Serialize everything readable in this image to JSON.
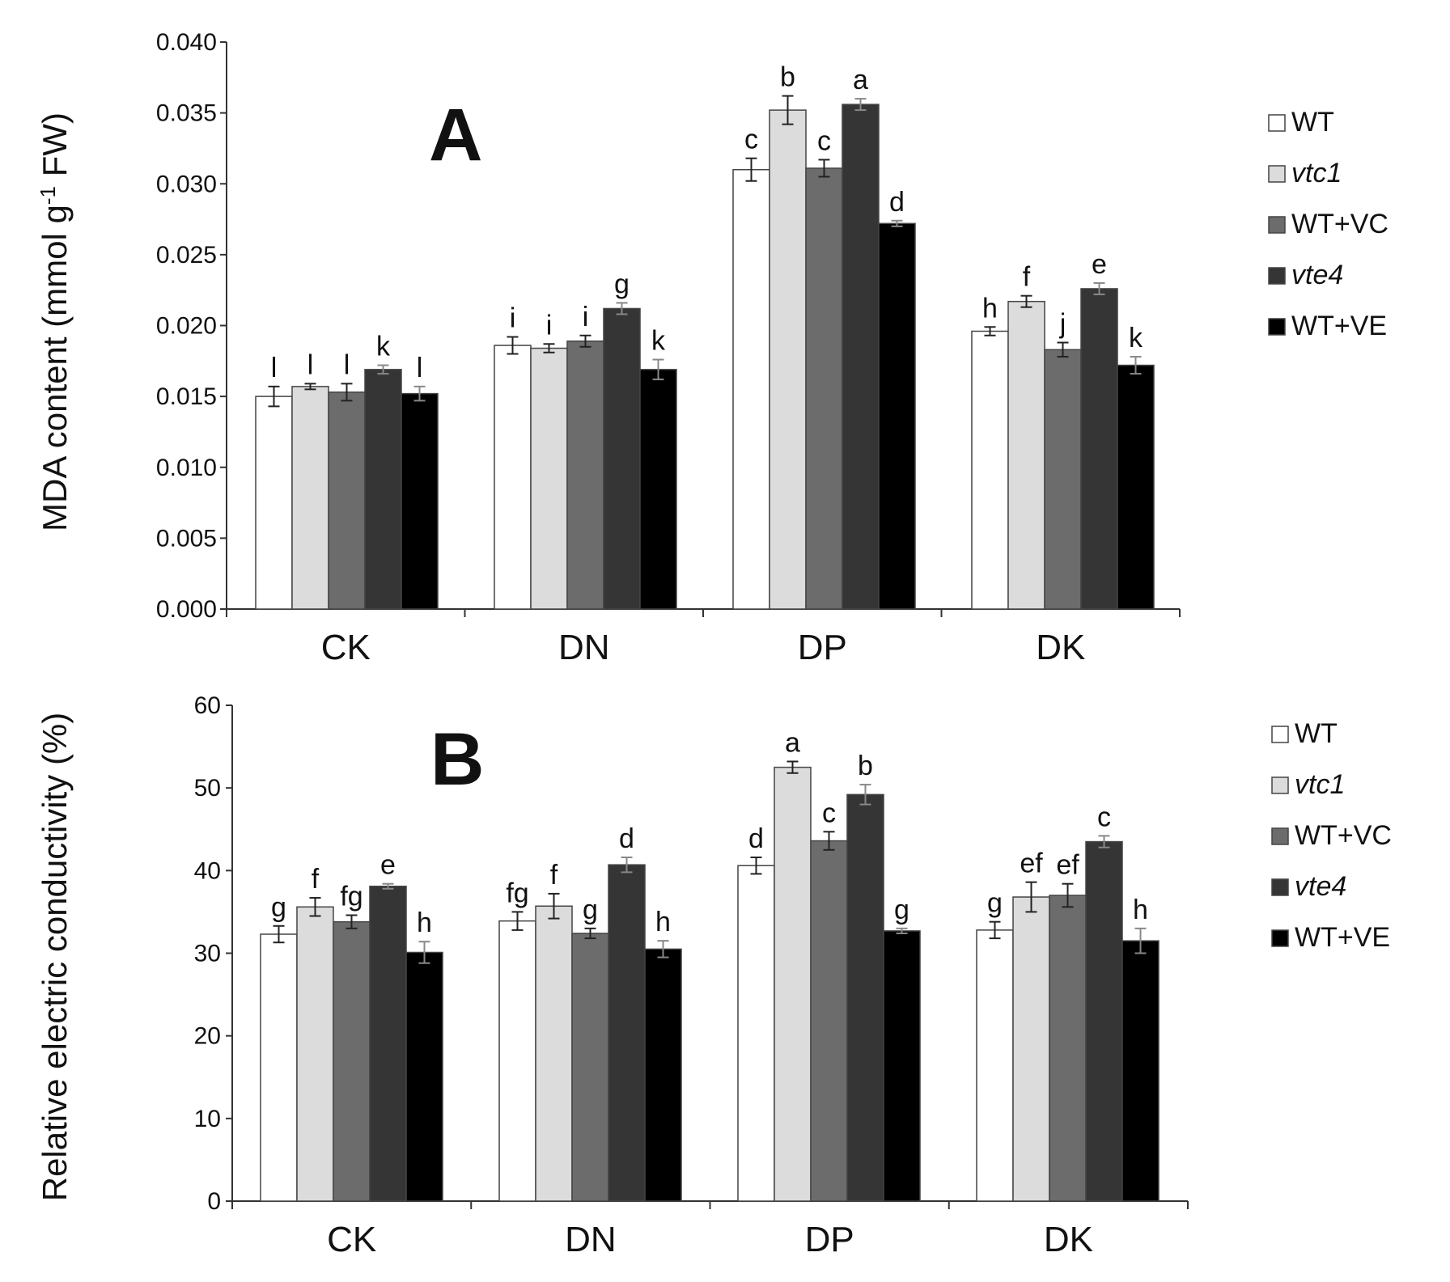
{
  "chart_data": [
    {
      "type": "bar",
      "panel_label": "A",
      "title": "",
      "xlabel": "",
      "ylabel": "MDA content (mmol g",
      "ylabel_sup": "-1",
      "ylabel_end": " FW)",
      "ylim": [
        0,
        0.04
      ],
      "yticks": [
        0,
        0.005,
        0.01,
        0.015,
        0.02,
        0.025,
        0.03,
        0.035,
        0.04
      ],
      "ytick_labels": [
        "0.000",
        "0.005",
        "0.010",
        "0.015",
        "0.020",
        "0.025",
        "0.030",
        "0.035",
        "0.040"
      ],
      "categories": [
        "CK",
        "DN",
        "DP",
        "DK"
      ],
      "grid": false,
      "legend": "right",
      "series": [
        {
          "name": "WT",
          "italic": false,
          "color": "#ffffff",
          "values": [
            0.015,
            0.0186,
            0.031,
            0.0196
          ],
          "errors": [
            0.0007,
            0.0006,
            0.0008,
            0.0003
          ],
          "letters": [
            "l",
            "i",
            "c",
            "h"
          ]
        },
        {
          "name": "vtc1",
          "italic": true,
          "color": "#dcdcdc",
          "values": [
            0.0157,
            0.0184,
            0.0352,
            0.0217
          ],
          "errors": [
            0.0002,
            0.0003,
            0.001,
            0.0004
          ],
          "letters": [
            "l",
            "i",
            "b",
            "f"
          ]
        },
        {
          "name": "WT+VC",
          "italic": false,
          "color": "#6c6c6c",
          "values": [
            0.0153,
            0.0189,
            0.0311,
            0.0183
          ],
          "errors": [
            0.0006,
            0.0004,
            0.0006,
            0.0005
          ],
          "letters": [
            "l",
            "i",
            "c",
            "j"
          ]
        },
        {
          "name": "vte4",
          "italic": true,
          "color": "#353535",
          "values": [
            0.0169,
            0.0212,
            0.0356,
            0.0226
          ],
          "errors": [
            0.0003,
            0.0004,
            0.0004,
            0.0004
          ],
          "letters": [
            "k",
            "g",
            "a",
            "e"
          ]
        },
        {
          "name": "WT+VE",
          "italic": false,
          "color": "#000000",
          "values": [
            0.0152,
            0.0169,
            0.0272,
            0.0172
          ],
          "errors": [
            0.0005,
            0.0007,
            0.0002,
            0.0006
          ],
          "letters": [
            "l",
            "k",
            "d",
            "k"
          ]
        }
      ]
    },
    {
      "type": "bar",
      "panel_label": "B",
      "title": "",
      "xlabel": "",
      "ylabel": "Relative electric conductivity (%)",
      "ylim": [
        0,
        60
      ],
      "yticks": [
        0,
        10,
        20,
        30,
        40,
        50,
        60
      ],
      "ytick_labels": [
        "0",
        "10",
        "20",
        "30",
        "40",
        "50",
        "60"
      ],
      "categories": [
        "CK",
        "DN",
        "DP",
        "DK"
      ],
      "grid": false,
      "legend": "right",
      "series": [
        {
          "name": "WT",
          "italic": false,
          "color": "#ffffff",
          "values": [
            32.3,
            33.9,
            40.6,
            32.8
          ],
          "errors": [
            1.0,
            1.1,
            1.0,
            1.0
          ],
          "letters": [
            "g",
            "fg",
            "d",
            "g"
          ]
        },
        {
          "name": "vtc1",
          "italic": true,
          "color": "#dcdcdc",
          "values": [
            35.6,
            35.7,
            52.5,
            36.8
          ],
          "errors": [
            1.1,
            1.5,
            0.7,
            1.8
          ],
          "letters": [
            "f",
            "f",
            "a",
            "ef"
          ]
        },
        {
          "name": "WT+VC",
          "italic": false,
          "color": "#6c6c6c",
          "values": [
            33.8,
            32.4,
            43.6,
            37.0
          ],
          "errors": [
            0.8,
            0.6,
            1.1,
            1.4
          ],
          "letters": [
            "fg",
            "g",
            "c",
            "ef"
          ]
        },
        {
          "name": "vte4",
          "italic": true,
          "color": "#353535",
          "values": [
            38.1,
            40.7,
            49.2,
            43.5
          ],
          "errors": [
            0.3,
            0.9,
            1.2,
            0.7
          ],
          "letters": [
            "e",
            "d",
            "b",
            "c"
          ]
        },
        {
          "name": "WT+VE",
          "italic": false,
          "color": "#000000",
          "values": [
            30.1,
            30.5,
            32.7,
            31.5
          ],
          "errors": [
            1.3,
            1.0,
            0.3,
            1.5
          ],
          "letters": [
            "h",
            "h",
            "g",
            "h"
          ]
        }
      ]
    }
  ]
}
